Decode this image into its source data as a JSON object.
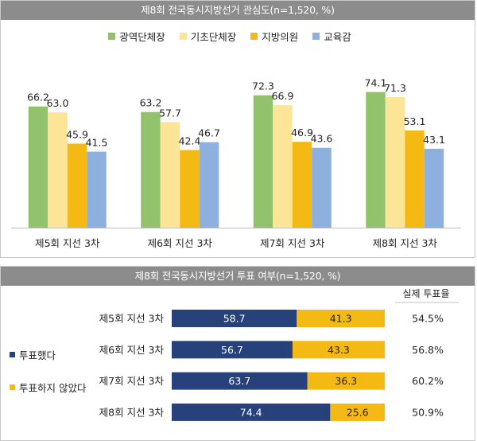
{
  "chart_data": [
    {
      "type": "bar",
      "title": "제8회 전국동시지방선거 관심도(n=1,520, %)",
      "categories": [
        "제5회 지선 3차",
        "제6회 지선 3차",
        "제7회 지선 3차",
        "제8회 지선 3차"
      ],
      "series": [
        {
          "name": "광역단체장",
          "color": "#92c36c",
          "values": [
            66.2,
            63.2,
            72.3,
            74.1
          ]
        },
        {
          "name": "기초단체장",
          "color": "#fde597",
          "values": [
            63.0,
            57.7,
            66.9,
            71.3
          ]
        },
        {
          "name": "지방의원",
          "color": "#f5b914",
          "values": [
            45.9,
            42.4,
            46.9,
            53.1
          ]
        },
        {
          "name": "교육감",
          "color": "#8eb0de",
          "values": [
            41.5,
            46.7,
            43.6,
            43.1
          ]
        }
      ],
      "value_labels": [
        [
          "66.2",
          "63.2",
          "72.3",
          "74.1"
        ],
        [
          "63.0",
          "57.7",
          "66.9",
          "71.3"
        ],
        [
          "45.9",
          "42.4",
          "46.9",
          "53.1"
        ],
        [
          "41.5",
          "46.7",
          "43.6",
          "43.1"
        ]
      ],
      "ylim": [
        0,
        100
      ],
      "grid": false,
      "legend_position": "top"
    },
    {
      "type": "bar",
      "orientation": "horizontal",
      "stacked": true,
      "title": "제8회 전국동시지방선거 투표 여부(n=1,520, %)",
      "categories": [
        "제5회 지선 3차",
        "제6회 지선 3차",
        "제7회 지선 3차",
        "제8회 지선 3차"
      ],
      "series": [
        {
          "name": "투표했다",
          "color": "#27427a",
          "values": [
            58.7,
            56.7,
            63.7,
            74.4
          ],
          "labels": [
            "58.7",
            "56.7",
            "63.7",
            "74.4"
          ]
        },
        {
          "name": "투표하지 않았다",
          "color": "#f5b914",
          "values": [
            41.3,
            43.3,
            36.3,
            25.6
          ],
          "labels": [
            "41.3",
            "43.3",
            "36.3",
            "25.6"
          ]
        }
      ],
      "xlim": [
        0,
        100
      ],
      "legend_position": "left",
      "side_column": {
        "header": "실제 투표율",
        "values": [
          "54.5%",
          "56.8%",
          "60.2%",
          "50.9%"
        ]
      }
    }
  ]
}
